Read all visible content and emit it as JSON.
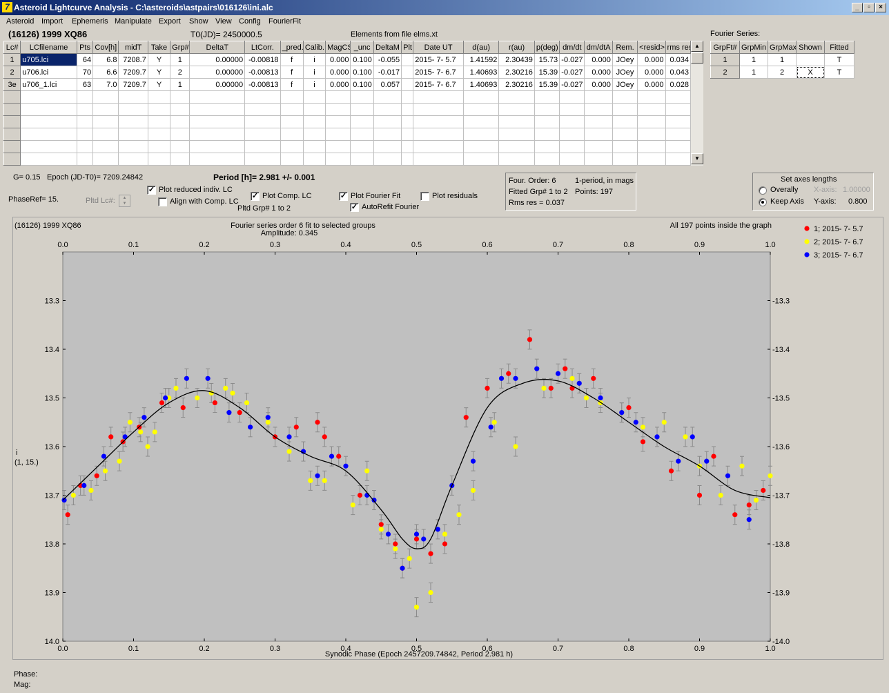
{
  "window": {
    "title": "Asteroid Lightcurve Analysis - C:\\asteroids\\astpairs\\016126\\ini.alc"
  },
  "menu": [
    "Asteroid",
    "Import",
    "Ephemeris",
    "Manipulate",
    "Export",
    "Show",
    "View",
    "Config",
    "FourierFit"
  ],
  "header": {
    "asteroid": "(16126) 1999 XQ86",
    "t0": "T0(JD)= 2450000.5",
    "elements": "Elements from file elms.xt"
  },
  "lc_table": {
    "columns": [
      "Lc#",
      "LCfilename",
      "Pts",
      "Cov[h]",
      "midT",
      "Take",
      "Grp#",
      "DeltaT",
      "LtCorr.",
      "_pred.",
      "Calib.",
      "MagCS",
      "_unc",
      "DeltaM",
      "Plt",
      "Date UT",
      "d(au)",
      "r(au)",
      "p(deg)",
      "dm/dt",
      "dm/dtA",
      "Rem.",
      "<resid>",
      "rms res"
    ],
    "rows": [
      [
        "1",
        "u705.lci",
        "64",
        "6.8",
        "7208.7",
        "Y",
        "1",
        "0.00000",
        "-0.00818",
        "f",
        "i",
        "0.000",
        "0.100",
        "-0.055",
        "",
        "2015- 7- 5.7",
        "1.41592",
        "2.30439",
        "15.73",
        "-0.027",
        "0.000",
        "JOey",
        "0.000",
        "0.034"
      ],
      [
        "2",
        "u706.lci",
        "70",
        "6.6",
        "7209.7",
        "Y",
        "2",
        "0.00000",
        "-0.00813",
        "f",
        "i",
        "0.000",
        "0.100",
        "-0.017",
        "",
        "2015- 7- 6.7",
        "1.40693",
        "2.30216",
        "15.39",
        "-0.027",
        "0.000",
        "JOey",
        "0.000",
        "0.043"
      ],
      [
        "3e",
        "u706_1.lci",
        "63",
        "7.0",
        "7209.7",
        "Y",
        "1",
        "0.00000",
        "-0.00813",
        "f",
        "i",
        "0.000",
        "0.100",
        "0.057",
        "",
        "2015- 7- 6.7",
        "1.40693",
        "2.30216",
        "15.39",
        "-0.027",
        "0.000",
        "JOey",
        "0.000",
        "0.028"
      ]
    ],
    "empty_rows": 6
  },
  "fourier_series": {
    "label": "Fourier Series:",
    "columns": [
      "GrpFt#",
      "GrpMin",
      "GrpMax",
      "Shown",
      "Fitted"
    ],
    "rows": [
      [
        "1",
        "1",
        "1",
        "",
        "T"
      ],
      [
        "2",
        "1",
        "2",
        "X",
        "T"
      ]
    ]
  },
  "controls": {
    "g": "G= 0.15",
    "epoch": "Epoch (JD-T0)= 7209.24842",
    "period": "Period [h]= 2.981 +/- 0.001",
    "phaseref": "PhaseRef= 15.",
    "pltd_lc": "Pltd Lc#:",
    "plot_reduced": "Plot reduced indiv. LC",
    "align": "Align with Comp. LC",
    "plot_comp": "Plot Comp. LC",
    "pltd_grp": "Pltd Grp#  1  to   2",
    "plot_fourier": "Plot Fourier Fit",
    "autorefit": "AutoRefit Fourier",
    "plot_residuals": "Plot residuals",
    "checks": {
      "plot_reduced": true,
      "align": false,
      "plot_comp": true,
      "plot_fourier": true,
      "autorefit": true,
      "plot_residuals": false
    }
  },
  "fit_info": {
    "order": "Four. Order:  6",
    "mode": "1-period, in mags",
    "fitted": "Fitted Grp# 1 to 2",
    "points": "Points: 197",
    "rms": "Rms res     = 0.037"
  },
  "axes_box": {
    "title": "Set axes lengths",
    "overally": "Overally",
    "keep": "Keep Axis",
    "xaxis_label": "X-axis:",
    "xaxis_value": "1.00000",
    "yaxis_label": "Y-axis:",
    "yaxis_value": "0.800",
    "selected": "keep"
  },
  "status": {
    "phase": "Phase:",
    "mag": "Mag:"
  },
  "chart_data": {
    "type": "scatter",
    "title": "Fourier series order 6 fit to selected groups",
    "subtitle": "Amplitude: 0.345",
    "left_title": "(16126) 1999 XQ86",
    "right_title": "All 197 points inside the graph",
    "xlabel": "Synodic Phase (Epoch 2457209.74842, Period 2.981 h)",
    "ylabel": "i",
    "ylabel2": "(1, 15.)",
    "xlim": [
      0,
      1
    ],
    "ylim": [
      14.0,
      13.2
    ],
    "xticks": [
      "0.0",
      "0.1",
      "0.2",
      "0.3",
      "0.4",
      "0.5",
      "0.6",
      "0.7",
      "0.8",
      "0.9",
      "1.0"
    ],
    "yticks": [
      "13.3",
      "13.4",
      "13.5",
      "13.6",
      "13.7",
      "13.8",
      "13.9",
      "14.0"
    ],
    "colors": {
      "background": "#c0c0c0",
      "fit": "#000000",
      "error": "#8a8a8a"
    },
    "fourier_fit": {
      "x": [
        0.0,
        0.05,
        0.1,
        0.15,
        0.2,
        0.25,
        0.3,
        0.35,
        0.4,
        0.45,
        0.48,
        0.5,
        0.52,
        0.55,
        0.6,
        0.65,
        0.7,
        0.75,
        0.8,
        0.85,
        0.9,
        0.95,
        1.0
      ],
      "y": [
        13.71,
        13.64,
        13.57,
        13.51,
        13.485,
        13.52,
        13.58,
        13.62,
        13.65,
        13.73,
        13.79,
        13.81,
        13.79,
        13.68,
        13.52,
        13.47,
        13.465,
        13.5,
        13.55,
        13.6,
        13.64,
        13.69,
        13.705
      ]
    },
    "series": [
      {
        "name": "1; 2015- 7- 5.7",
        "color": "#ff0000",
        "x": [
          0.007,
          0.025,
          0.048,
          0.068,
          0.085,
          0.108,
          0.14,
          0.17,
          0.215,
          0.25,
          0.3,
          0.33,
          0.36,
          0.37,
          0.39,
          0.42,
          0.45,
          0.47,
          0.48,
          0.5,
          0.52,
          0.54,
          0.57,
          0.6,
          0.63,
          0.66,
          0.69,
          0.71,
          0.72,
          0.75,
          0.8,
          0.82,
          0.86,
          0.9,
          0.92,
          0.95,
          0.97,
          0.99
        ],
        "y": [
          13.74,
          13.68,
          13.66,
          13.58,
          13.59,
          13.56,
          13.51,
          13.52,
          13.51,
          13.53,
          13.58,
          13.56,
          13.55,
          13.58,
          13.62,
          13.7,
          13.76,
          13.8,
          13.85,
          13.79,
          13.82,
          13.8,
          13.54,
          13.48,
          13.45,
          13.38,
          13.48,
          13.44,
          13.48,
          13.46,
          13.52,
          13.59,
          13.65,
          13.7,
          13.62,
          13.74,
          13.72,
          13.69
        ]
      },
      {
        "name": "2; 2015- 7- 6.7",
        "color": "#ffff00",
        "x": [
          0.015,
          0.04,
          0.06,
          0.08,
          0.095,
          0.11,
          0.12,
          0.13,
          0.15,
          0.16,
          0.19,
          0.21,
          0.23,
          0.24,
          0.26,
          0.29,
          0.32,
          0.35,
          0.37,
          0.41,
          0.43,
          0.45,
          0.47,
          0.49,
          0.5,
          0.52,
          0.54,
          0.56,
          0.58,
          0.61,
          0.64,
          0.68,
          0.72,
          0.74,
          0.76,
          0.79,
          0.82,
          0.85,
          0.88,
          0.9,
          0.93,
          0.96,
          0.98,
          1.0
        ],
        "y": [
          13.7,
          13.69,
          13.65,
          13.63,
          13.55,
          13.57,
          13.6,
          13.57,
          13.5,
          13.48,
          13.5,
          13.49,
          13.48,
          13.49,
          13.51,
          13.55,
          13.61,
          13.67,
          13.67,
          13.72,
          13.65,
          13.77,
          13.81,
          13.83,
          13.93,
          13.9,
          13.78,
          13.74,
          13.69,
          13.55,
          13.6,
          13.48,
          13.46,
          13.5,
          13.51,
          13.53,
          13.56,
          13.55,
          13.58,
          13.64,
          13.7,
          13.64,
          13.71,
          13.66
        ]
      },
      {
        "name": "3; 2015- 7- 6.7",
        "color": "#0000ff",
        "x": [
          0.002,
          0.03,
          0.058,
          0.088,
          0.115,
          0.145,
          0.175,
          0.205,
          0.235,
          0.265,
          0.29,
          0.32,
          0.34,
          0.36,
          0.38,
          0.4,
          0.43,
          0.44,
          0.46,
          0.48,
          0.5,
          0.51,
          0.53,
          0.55,
          0.58,
          0.605,
          0.62,
          0.64,
          0.67,
          0.7,
          0.73,
          0.76,
          0.79,
          0.81,
          0.84,
          0.87,
          0.89,
          0.91,
          0.94,
          0.97
        ],
        "y": [
          13.71,
          13.68,
          13.62,
          13.58,
          13.54,
          13.5,
          13.46,
          13.46,
          13.53,
          13.56,
          13.54,
          13.58,
          13.61,
          13.66,
          13.62,
          13.64,
          13.7,
          13.71,
          13.78,
          13.85,
          13.78,
          13.79,
          13.77,
          13.68,
          13.63,
          13.56,
          13.46,
          13.46,
          13.44,
          13.45,
          13.47,
          13.5,
          13.53,
          13.55,
          13.58,
          13.63,
          13.58,
          13.63,
          13.66,
          13.75
        ]
      }
    ]
  }
}
